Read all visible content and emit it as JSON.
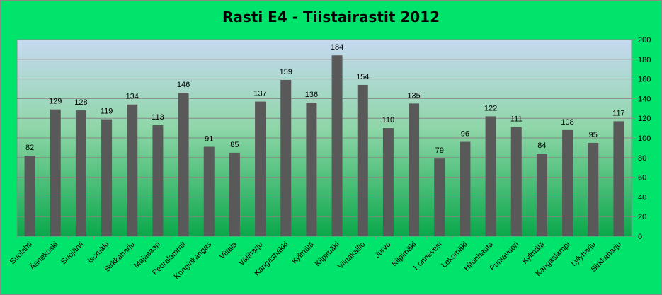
{
  "chart_data": {
    "type": "bar",
    "title": "Rasti E4 - Tiistairastit 2012",
    "categories": [
      "Suolahti",
      "Äänekoski",
      "Suojärvi",
      "Isomäki",
      "Sirkkaharju",
      "Majasaari",
      "Peuralammit",
      "Konginkangas",
      "Viitala",
      "Väliharju",
      "Kangashäkki",
      "Kylmälä",
      "Kilpimäki",
      "Viinakallio",
      "Jurvo",
      "Kilpimäki",
      "Konnevesi",
      "Lekomäki",
      "Hitonhauta",
      "Puntavuori",
      "Kylmälä",
      "Kangaslampi",
      "Lylyharju",
      "Sirkkaharju"
    ],
    "values": [
      82,
      129,
      128,
      119,
      134,
      113,
      146,
      91,
      85,
      137,
      159,
      136,
      184,
      154,
      110,
      135,
      79,
      96,
      122,
      111,
      84,
      108,
      95,
      117
    ],
    "xlabel": "",
    "ylabel": "",
    "ylim": [
      0,
      200
    ],
    "yticks": [
      0,
      20,
      40,
      60,
      80,
      100,
      120,
      140,
      160,
      180,
      200
    ],
    "y_axis_side": "right",
    "grid": true,
    "colors": {
      "bar": "#595959",
      "plot_top": "#c6d9f1",
      "plot_bottom": "#00b050",
      "background": "#00e46b"
    }
  }
}
